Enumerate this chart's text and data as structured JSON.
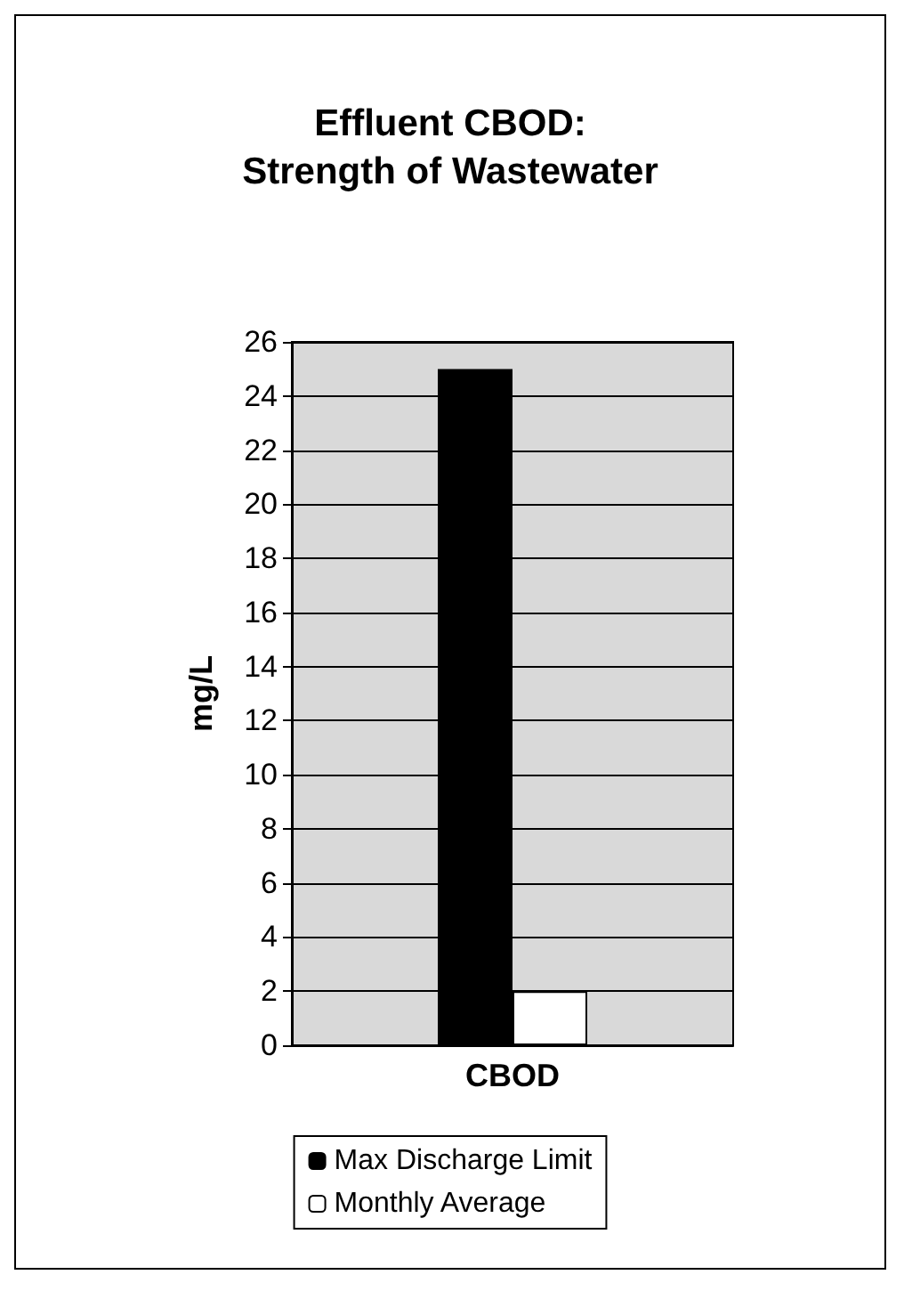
{
  "chart_data": {
    "type": "bar",
    "title": "Effluent CBOD:\nStrength of Wastewater",
    "ylabel": "mg/L",
    "categories": [
      "CBOD"
    ],
    "series": [
      {
        "name": "Max Discharge Limit",
        "color": "#000000",
        "values": [
          25
        ]
      },
      {
        "name": "Monthly Average",
        "color": "#ffffff",
        "values": [
          2
        ]
      }
    ],
    "ylim": [
      0,
      26
    ],
    "yticks": [
      0,
      2,
      4,
      6,
      8,
      10,
      12,
      14,
      16,
      18,
      20,
      22,
      24,
      26
    ],
    "grid": "y",
    "legend": "bottom"
  }
}
